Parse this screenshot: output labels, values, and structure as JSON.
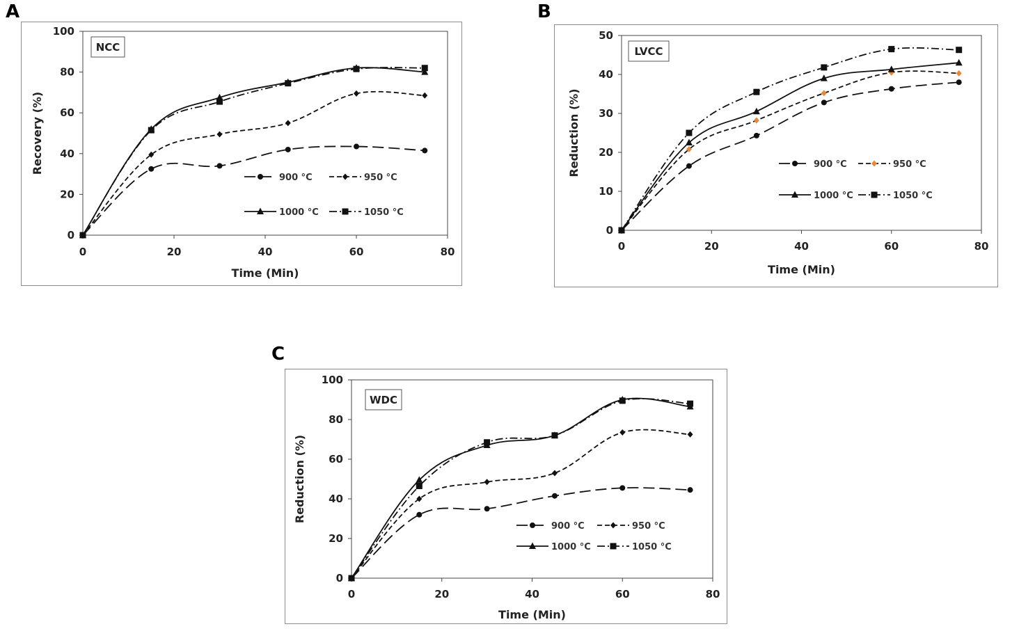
{
  "chart_data": [
    {
      "panel": "A",
      "type": "line",
      "inset_label": "NCC",
      "xlabel": "Time (Min)",
      "ylabel": "Recovery (%)",
      "xlim": [
        0,
        80
      ],
      "ylim": [
        0,
        100
      ],
      "xticks": [
        0,
        20,
        40,
        60,
        80
      ],
      "yticks": [
        0,
        20,
        40,
        60,
        80,
        100
      ],
      "x": [
        0,
        15,
        30,
        45,
        60,
        75
      ],
      "series": [
        {
          "name": "900 °C",
          "values": [
            0,
            32.5,
            34,
            42,
            43.5,
            41.5
          ],
          "marker": "circle",
          "dash": "long"
        },
        {
          "name": "950 °C",
          "values": [
            0,
            39.5,
            49.5,
            55,
            69.5,
            68.5
          ],
          "marker": "diamond",
          "dash": "short"
        },
        {
          "name": "1000 °C",
          "values": [
            0,
            52,
            67.5,
            75,
            82,
            80
          ],
          "marker": "triangle",
          "dash": "solid"
        },
        {
          "name": "1050 °C",
          "values": [
            0,
            51.5,
            65.5,
            74.5,
            81.5,
            82
          ],
          "marker": "square",
          "dash": "dashdot"
        }
      ]
    },
    {
      "panel": "B",
      "type": "line",
      "inset_label": "LVCC",
      "xlabel": "Time (Min)",
      "ylabel": "Reduction (%)",
      "xlim": [
        0,
        80
      ],
      "ylim": [
        0,
        50
      ],
      "xticks": [
        0,
        20,
        40,
        60,
        80
      ],
      "yticks": [
        0,
        10,
        20,
        30,
        40,
        50
      ],
      "x": [
        0,
        15,
        30,
        45,
        60,
        75
      ],
      "series": [
        {
          "name": "900 °C",
          "values": [
            0,
            16.5,
            24.3,
            32.8,
            36.3,
            38
          ],
          "marker": "circle",
          "dash": "long"
        },
        {
          "name": "950 °C",
          "values": [
            0,
            20.8,
            28.2,
            35.2,
            40.5,
            40.3
          ],
          "marker": "diamond",
          "dash": "short",
          "marker_color": "#E8883A"
        },
        {
          "name": "1000 °C",
          "values": [
            0,
            22.5,
            30.5,
            39,
            41.3,
            43
          ],
          "marker": "triangle",
          "dash": "solid"
        },
        {
          "name": "1050 °C",
          "values": [
            0,
            25,
            35.5,
            41.8,
            46.5,
            46.3
          ],
          "marker": "square",
          "dash": "dashdot"
        }
      ]
    },
    {
      "panel": "C",
      "type": "line",
      "inset_label": "WDC",
      "xlabel": "Time (Min)",
      "ylabel": "Reduction (%)",
      "xlim": [
        0,
        80
      ],
      "ylim": [
        0,
        100
      ],
      "xticks": [
        0,
        20,
        40,
        60,
        80
      ],
      "yticks": [
        0,
        20,
        40,
        60,
        80,
        100
      ],
      "x": [
        0,
        15,
        30,
        45,
        60,
        75
      ],
      "series": [
        {
          "name": "900 °C",
          "values": [
            0,
            32,
            35,
            41.5,
            45.5,
            44.5
          ],
          "marker": "circle",
          "dash": "long"
        },
        {
          "name": "950 °C",
          "values": [
            0,
            40,
            48.5,
            53,
            73.5,
            72.5
          ],
          "marker": "diamond",
          "dash": "short"
        },
        {
          "name": "1000 °C",
          "values": [
            0,
            49.5,
            67,
            72,
            90,
            86.5
          ],
          "marker": "triangle",
          "dash": "solid"
        },
        {
          "name": "1050 °C",
          "values": [
            0,
            46.5,
            68.5,
            72,
            89.5,
            88
          ],
          "marker": "square",
          "dash": "dashdot"
        }
      ]
    }
  ]
}
